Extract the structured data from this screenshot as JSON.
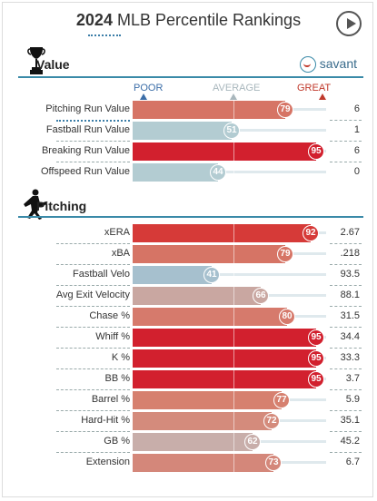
{
  "header": {
    "year": "2024",
    "title": "MLB Percentile Rankings"
  },
  "brand": {
    "name": "savant"
  },
  "scale": {
    "poor": "POOR",
    "average": "AVERAGE",
    "great": "GREAT"
  },
  "colors": {
    "poor_blue": "#3c6ea8",
    "average_gray": "#a9b7bd",
    "great_red": "#c0392b",
    "accent_line": "#3a8aa8"
  },
  "sections": [
    {
      "label": "Value",
      "icon": "trophy-icon",
      "rows": [
        {
          "label": "Pitching Run Value",
          "percentile": 79,
          "value": "6",
          "color": "#d67465"
        },
        {
          "label": "Fastball Run Value",
          "percentile": 51,
          "value": "1",
          "color": "#b3ccd2"
        },
        {
          "label": "Breaking Run Value",
          "percentile": 95,
          "value": "6",
          "color": "#d2202e"
        },
        {
          "label": "Offspeed Run Value",
          "percentile": 44,
          "value": "0",
          "color": "#b3ccd2"
        }
      ]
    },
    {
      "label": "Pitching",
      "icon": "pitcher-icon",
      "rows": [
        {
          "label": "xERA",
          "percentile": 92,
          "value": "2.67",
          "color": "#d63a38"
        },
        {
          "label": "xBA",
          "percentile": 79,
          "value": ".218",
          "color": "#d67465"
        },
        {
          "label": "Fastball Velo",
          "percentile": 41,
          "value": "93.5",
          "color": "#a6c0ce"
        },
        {
          "label": "Avg Exit Velocity",
          "percentile": 66,
          "value": "88.1",
          "color": "#c9a7a1"
        },
        {
          "label": "Chase %",
          "percentile": 80,
          "value": "31.5",
          "color": "#d67a6c"
        },
        {
          "label": "Whiff %",
          "percentile": 95,
          "value": "34.4",
          "color": "#d2202e"
        },
        {
          "label": "K %",
          "percentile": 95,
          "value": "33.3",
          "color": "#d2202e"
        },
        {
          "label": "BB %",
          "percentile": 95,
          "value": "3.7",
          "color": "#d2202e"
        },
        {
          "label": "Barrel %",
          "percentile": 77,
          "value": "5.9",
          "color": "#d6806f"
        },
        {
          "label": "Hard-Hit %",
          "percentile": 72,
          "value": "35.1",
          "color": "#d48b7c"
        },
        {
          "label": "GB %",
          "percentile": 62,
          "value": "45.2",
          "color": "#c8aeaa"
        },
        {
          "label": "Extension",
          "percentile": 73,
          "value": "6.7",
          "color": "#d4877a"
        }
      ]
    }
  ]
}
